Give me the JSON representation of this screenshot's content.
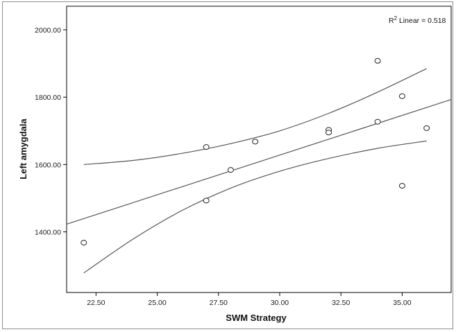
{
  "chart_data": {
    "type": "scatter",
    "xlabel": "SWM Strategy",
    "ylabel": "Left amygdala",
    "xlim": [
      21.3,
      37.0
    ],
    "ylim": [
      1220,
      2070
    ],
    "x_ticks": [
      "22.50",
      "25.00",
      "27.50",
      "30.00",
      "32.50",
      "35.00"
    ],
    "y_ticks": [
      "1400.00",
      "1600.00",
      "1800.00",
      "2000.00"
    ],
    "r2_prefix": "R",
    "r2_sup": "2",
    "r2_suffix": " Linear = 0.518",
    "points": [
      {
        "x": 22,
        "y": 1368
      },
      {
        "x": 27,
        "y": 1652
      },
      {
        "x": 27,
        "y": 1493
      },
      {
        "x": 28,
        "y": 1584
      },
      {
        "x": 29,
        "y": 1668
      },
      {
        "x": 32,
        "y": 1703
      },
      {
        "x": 32,
        "y": 1695
      },
      {
        "x": 34,
        "y": 1908
      },
      {
        "x": 34,
        "y": 1727
      },
      {
        "x": 35,
        "y": 1803
      },
      {
        "x": 35,
        "y": 1537
      },
      {
        "x": 36,
        "y": 1708
      }
    ],
    "fit_line": [
      [
        21.3,
        1423
      ],
      [
        37.0,
        1793
      ]
    ],
    "ci_upper": [
      [
        22,
        1600
      ],
      [
        24,
        1612
      ],
      [
        26,
        1633
      ],
      [
        28,
        1662
      ],
      [
        30,
        1700
      ],
      [
        32,
        1752
      ],
      [
        34,
        1815
      ],
      [
        36,
        1885
      ]
    ],
    "ci_lower": [
      [
        22,
        1278
      ],
      [
        24,
        1378
      ],
      [
        26,
        1463
      ],
      [
        28,
        1530
      ],
      [
        30,
        1580
      ],
      [
        32,
        1618
      ],
      [
        34,
        1648
      ],
      [
        36,
        1670
      ]
    ],
    "grid": false,
    "colors": {
      "line": "#555555",
      "marker": "#222222",
      "axis": "#000000"
    }
  }
}
